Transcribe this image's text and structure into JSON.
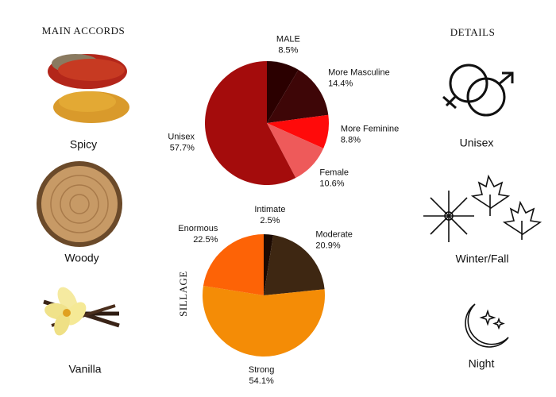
{
  "chart_data": [
    {
      "type": "pie",
      "categories": [
        "MALE",
        "More Masculine",
        "More Feminine",
        "Female",
        "Unisex"
      ],
      "values": [
        8.5,
        14.4,
        8.8,
        10.6,
        57.7
      ],
      "value_labels": [
        "8.5%",
        "14.4%",
        "8.8%",
        "10.6%",
        "57.7%"
      ],
      "colors": [
        "#2b0000",
        "#3e0607",
        "#ff0a0a",
        "#ee5a5a",
        "#a40c0c"
      ]
    },
    {
      "type": "pie",
      "title": "SILLAGE",
      "categories": [
        "Intimate",
        "Moderate",
        "Strong",
        "Enormous"
      ],
      "values": [
        2.5,
        20.9,
        54.1,
        22.5
      ],
      "value_labels": [
        "2.5%",
        "20.9%",
        "54.1%",
        "22.5%"
      ],
      "colors": [
        "#1c0a02",
        "#3e2712",
        "#f48c06",
        "#fd6306"
      ]
    }
  ],
  "accords": {
    "title": "MAIN ACCORDS",
    "items": [
      "Spicy",
      "Woody",
      "Vanilla"
    ]
  },
  "details": {
    "title": "DETAILS",
    "items": [
      "Unisex",
      "Winter/Fall",
      "Night"
    ]
  }
}
